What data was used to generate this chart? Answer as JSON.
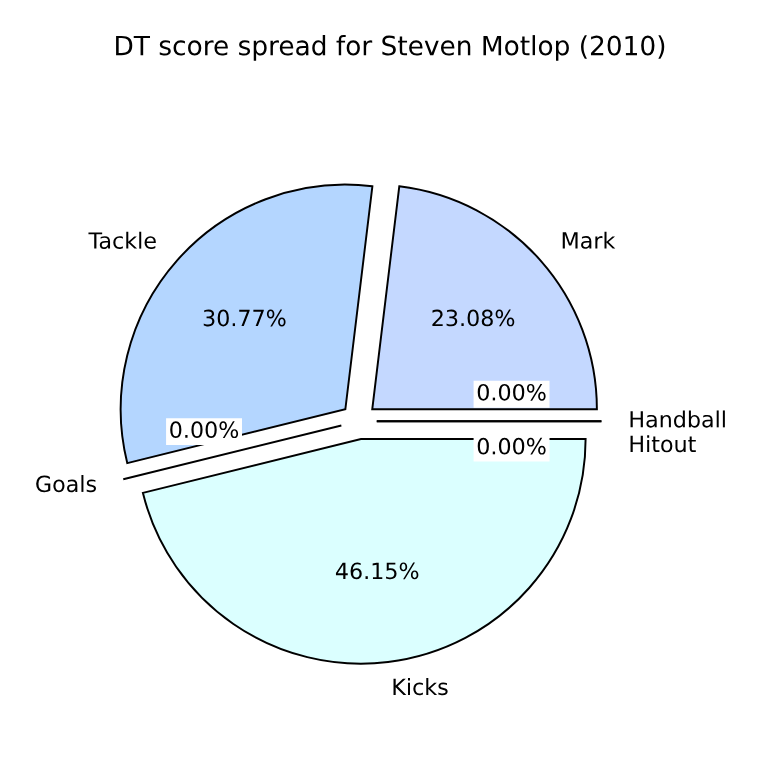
{
  "chart_data": {
    "type": "pie",
    "title": "DT score spread for Steven Motlop (2010)",
    "categories": [
      "Mark",
      "Tackle",
      "Goals",
      "Kicks",
      "Handball",
      "Hitout"
    ],
    "values": [
      23.08,
      30.77,
      0,
      46.15,
      0,
      0
    ],
    "colors": [
      "#c4d8ff",
      "#b4d6ff",
      "#c8e8ff",
      "#dbffff",
      "#d0f0ff",
      "#e0e8ff"
    ],
    "value_labels": [
      "23.08%",
      "30.77%",
      "0.00%",
      "46.15%",
      "0.00%",
      "0.00%"
    ]
  }
}
